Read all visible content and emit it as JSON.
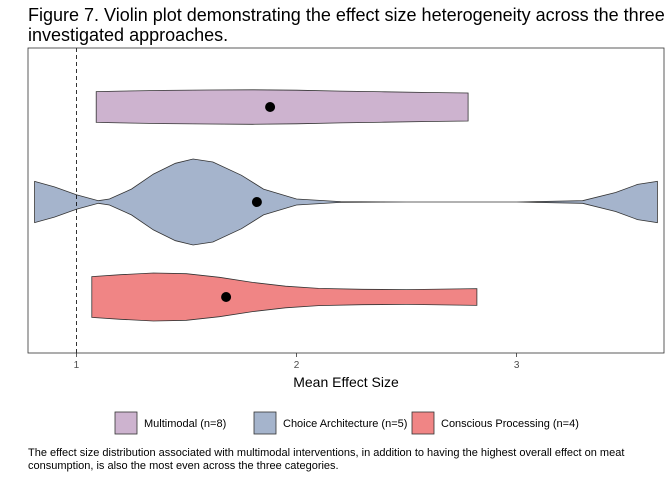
{
  "figure": {
    "title": "Figure 7. Violin plot demonstrating the effect size heterogeneity across the three investigated approaches.",
    "caption": "The effect size distribution associated with multimodal interventions, in addition to having the highest overall effect on meat consumption, is also the most even across the three categories."
  },
  "chart_data": {
    "type": "violin",
    "orientation": "horizontal",
    "xlabel": "Mean Effect Size",
    "ylabel": "",
    "xlim": [
      0.78,
      3.67
    ],
    "x_ticks": [
      1,
      2,
      3
    ],
    "reference_line": {
      "x": 1,
      "style": "dashed"
    },
    "grid": false,
    "legend_position": "bottom",
    "series": [
      {
        "name": "Multimodal (n=8)",
        "color": "#cdb3cf",
        "mean": 1.88,
        "range": [
          1.09,
          2.78
        ],
        "density_profile": [
          [
            1.09,
            0.67
          ],
          [
            1.2,
            0.69
          ],
          [
            1.4,
            0.72
          ],
          [
            1.6,
            0.74
          ],
          [
            1.8,
            0.75
          ],
          [
            2.0,
            0.73
          ],
          [
            2.2,
            0.69
          ],
          [
            2.4,
            0.66
          ],
          [
            2.6,
            0.63
          ],
          [
            2.78,
            0.61
          ]
        ]
      },
      {
        "name": "Choice Architecture (n=5)",
        "color": "#a5b4cc",
        "mean": 1.82,
        "range": [
          0.81,
          3.64
        ],
        "density_profile": [
          [
            0.81,
            0.48
          ],
          [
            0.9,
            0.35
          ],
          [
            1.0,
            0.17
          ],
          [
            1.1,
            0.03
          ],
          [
            1.15,
            0.07
          ],
          [
            1.25,
            0.3
          ],
          [
            1.35,
            0.65
          ],
          [
            1.45,
            0.9
          ],
          [
            1.53,
            1.0
          ],
          [
            1.62,
            0.93
          ],
          [
            1.75,
            0.62
          ],
          [
            1.85,
            0.3
          ],
          [
            2.0,
            0.07
          ],
          [
            2.2,
            0.01
          ],
          [
            2.5,
            0.0
          ],
          [
            3.0,
            0.0
          ],
          [
            3.3,
            0.03
          ],
          [
            3.45,
            0.22
          ],
          [
            3.55,
            0.41
          ],
          [
            3.64,
            0.48
          ]
        ]
      },
      {
        "name": "Conscious Processing (n=4)",
        "color": "#f08585",
        "mean": 1.68,
        "range": [
          1.07,
          2.82
        ],
        "density_profile": [
          [
            1.07,
            0.85
          ],
          [
            1.2,
            0.93
          ],
          [
            1.35,
            1.0
          ],
          [
            1.5,
            0.97
          ],
          [
            1.65,
            0.82
          ],
          [
            1.8,
            0.61
          ],
          [
            1.95,
            0.45
          ],
          [
            2.1,
            0.36
          ],
          [
            2.3,
            0.32
          ],
          [
            2.5,
            0.31
          ],
          [
            2.82,
            0.35
          ]
        ]
      }
    ]
  }
}
